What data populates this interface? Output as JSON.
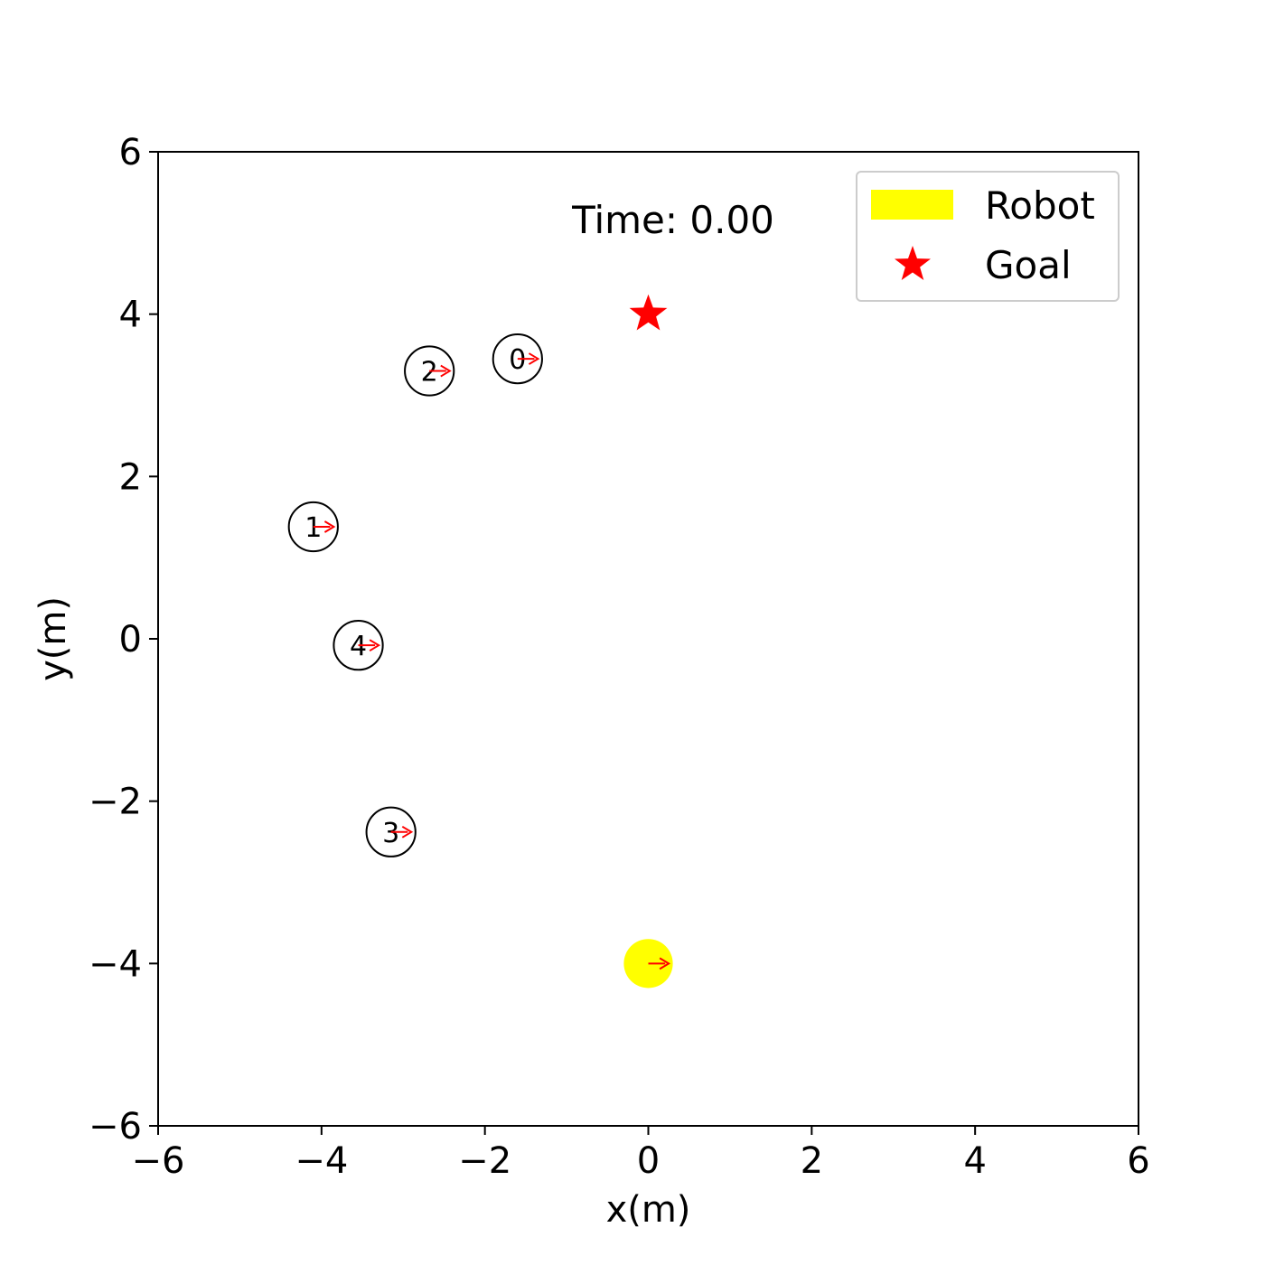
{
  "chart_data": {
    "type": "scatter",
    "xlabel": "x(m)",
    "ylabel": "y(m)",
    "xlim": [
      -6,
      6
    ],
    "ylim": [
      -6,
      6
    ],
    "xticks": [
      "−6",
      "−4",
      "−2",
      "0",
      "2",
      "4",
      "6"
    ],
    "yticks": [
      "−6",
      "−4",
      "−2",
      "0",
      "2",
      "4",
      "6"
    ],
    "xtick_values": [
      -6,
      -4,
      -2,
      0,
      2,
      4,
      6
    ],
    "ytick_values": [
      -6,
      -4,
      -2,
      0,
      2,
      4,
      6
    ],
    "grid": false,
    "time_text": "Time: 0.00",
    "legend": {
      "placement": "top-right",
      "entries": [
        {
          "label": "Robot",
          "color": "#ffff00",
          "marker": "rect"
        },
        {
          "label": "Goal",
          "color": "#ff0000",
          "marker": "star"
        }
      ]
    },
    "robot": {
      "x": 0.0,
      "y": -4.0,
      "radius": 0.3,
      "color": "#ffff00"
    },
    "goal": {
      "x": 0.0,
      "y": 4.0,
      "color": "#ff0000"
    },
    "humans": [
      {
        "label": "0",
        "x": -1.6,
        "y": 3.45,
        "radius": 0.3
      },
      {
        "label": "1",
        "x": -4.1,
        "y": 1.38,
        "radius": 0.3
      },
      {
        "label": "2",
        "x": -2.68,
        "y": 3.3,
        "radius": 0.3
      },
      {
        "label": "3",
        "x": -3.15,
        "y": -2.38,
        "radius": 0.3
      },
      {
        "label": "4",
        "x": -3.55,
        "y": -0.08,
        "radius": 0.3
      }
    ],
    "arrow_color": "#ff0000",
    "arrow_length": 0.25
  }
}
